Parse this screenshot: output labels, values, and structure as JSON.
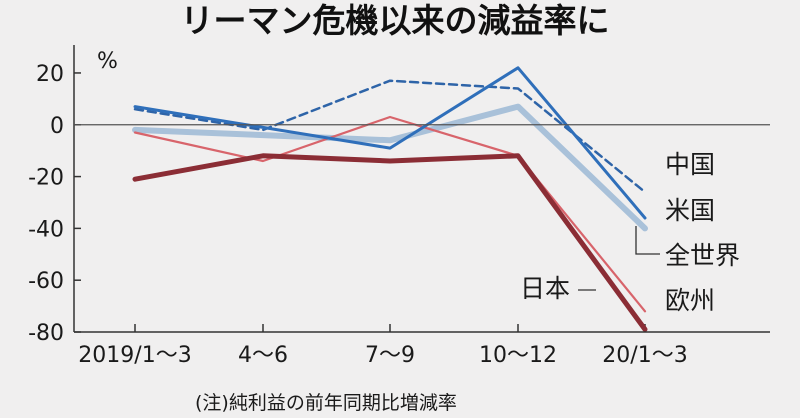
{
  "chart_data": {
    "type": "line",
    "title": "リーマン危機以来の減益率に",
    "ylabel": "%",
    "note": "(注)純利益の前年同期比増減率",
    "categories": [
      "2019/1～3",
      "4～6",
      "7～9",
      "10～12",
      "20/1～3"
    ],
    "ylim": [
      -80,
      25
    ],
    "yticks": [
      20,
      0,
      -20,
      -40,
      -60,
      -80
    ],
    "series": [
      {
        "name": "中国",
        "values": [
          6,
          -2,
          17,
          14,
          -26
        ],
        "color": "#2e64a8",
        "dash": true
      },
      {
        "name": "米国",
        "values": [
          7,
          -1,
          -9,
          22,
          -36
        ],
        "color": "#2f6fba",
        "dash": false
      },
      {
        "name": "全世界",
        "values": [
          -2,
          -4,
          -6,
          7,
          -40
        ],
        "color": "#a9c1d9",
        "dash": false
      },
      {
        "name": "日本",
        "values": [
          -21,
          -12,
          -14,
          -12,
          -79
        ],
        "color": "#8b2d35",
        "dash": false
      },
      {
        "name": "欧州",
        "values": [
          -3,
          -14,
          3,
          -12,
          -72
        ],
        "color": "#d8646b",
        "dash": false
      }
    ]
  }
}
